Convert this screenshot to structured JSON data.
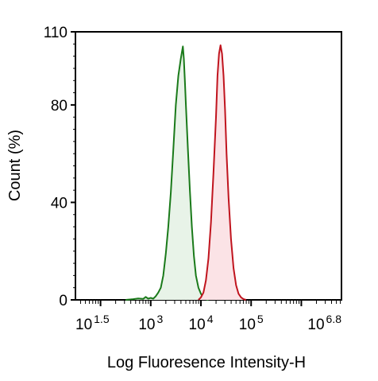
{
  "chart_data": {
    "type": "area",
    "title": "",
    "xlabel": "Log Fluoresence Intensity-H",
    "ylabel": "Count  (%)",
    "x_scale": "log10",
    "xlim": [
      31.62,
      6309573
    ],
    "ylim": [
      0,
      110
    ],
    "y_ticks": [
      0,
      40,
      80,
      110
    ],
    "y_tick_labels": [
      "0",
      "40",
      "80",
      "110"
    ],
    "x_tick_labels": [
      {
        "base": "10",
        "exp": "1.5",
        "value": 31.62
      },
      {
        "base": "10",
        "exp": "3",
        "value": 1000
      },
      {
        "base": "10",
        "exp": "4",
        "value": 10000
      },
      {
        "base": "10",
        "exp": "5",
        "value": 100000
      },
      {
        "base": "10",
        "exp": "6.8",
        "value": 6309573
      }
    ],
    "grid": false,
    "legend": "none",
    "series": [
      {
        "color": "#1a7a1a",
        "fill": "#e8f3e8",
        "points": [
          [
            316,
            0
          ],
          [
            447,
            0.3
          ],
          [
            562,
            0.6
          ],
          [
            708,
            0.4
          ],
          [
            794,
            1.2
          ],
          [
            891,
            0.5
          ],
          [
            1000,
            0.8
          ],
          [
            1122,
            0.5
          ],
          [
            1259,
            1.5
          ],
          [
            1413,
            3
          ],
          [
            1585,
            5
          ],
          [
            1778,
            10
          ],
          [
            1995,
            19
          ],
          [
            2239,
            30
          ],
          [
            2512,
            44
          ],
          [
            2818,
            62
          ],
          [
            3162,
            80
          ],
          [
            3548,
            92
          ],
          [
            3981,
            99
          ],
          [
            4365,
            104
          ],
          [
            4571,
            99
          ],
          [
            4786,
            90
          ],
          [
            5012,
            80
          ],
          [
            5495,
            62
          ],
          [
            6026,
            45
          ],
          [
            6607,
            30
          ],
          [
            7244,
            18
          ],
          [
            7943,
            10
          ],
          [
            8913,
            5
          ],
          [
            10000,
            2.5
          ],
          [
            11220,
            1
          ],
          [
            12589,
            0.3
          ],
          [
            14125,
            0
          ]
        ]
      },
      {
        "color": "#c0141e",
        "fill": "#fbe3e6",
        "points": [
          [
            8913,
            0
          ],
          [
            10000,
            1
          ],
          [
            11220,
            3
          ],
          [
            12589,
            8
          ],
          [
            14125,
            17
          ],
          [
            15849,
            32
          ],
          [
            17783,
            52
          ],
          [
            19953,
            75
          ],
          [
            21380,
            92
          ],
          [
            22909,
            101
          ],
          [
            24547,
            104.5
          ],
          [
            26303,
            101
          ],
          [
            28184,
            92
          ],
          [
            30200,
            78
          ],
          [
            32359,
            60
          ],
          [
            35481,
            42
          ],
          [
            39811,
            25
          ],
          [
            44668,
            13
          ],
          [
            50119,
            6
          ],
          [
            56234,
            2.5
          ],
          [
            63096,
            1
          ],
          [
            70795,
            0.3
          ],
          [
            79433,
            0
          ]
        ]
      }
    ]
  }
}
